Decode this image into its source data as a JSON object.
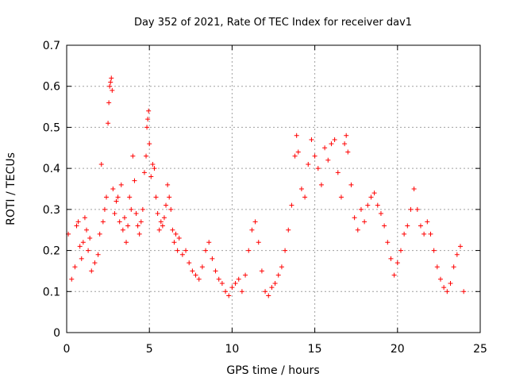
{
  "chart_data": {
    "type": "scatter",
    "title": "Day 352 of 2021, Rate Of TEC Index for receiver dav1",
    "xlabel": "GPS time / hours",
    "ylabel": "ROTI / TECUs",
    "xlim": [
      0,
      25
    ],
    "ylim": [
      0,
      0.7
    ],
    "xticks": [
      0,
      5,
      10,
      15,
      20,
      25
    ],
    "yticks": [
      0,
      0.1,
      0.2,
      0.3,
      0.4,
      0.5,
      0.6,
      0.7
    ],
    "grid": true,
    "marker": "+",
    "color": "#ff0000",
    "series": [
      {
        "points": [
          [
            0.1,
            0.24
          ],
          [
            0.3,
            0.13
          ],
          [
            0.5,
            0.16
          ],
          [
            0.6,
            0.26
          ],
          [
            0.7,
            0.27
          ],
          [
            0.8,
            0.21
          ],
          [
            0.9,
            0.18
          ],
          [
            1.0,
            0.22
          ],
          [
            1.1,
            0.28
          ],
          [
            1.2,
            0.25
          ],
          [
            1.3,
            0.2
          ],
          [
            1.4,
            0.23
          ],
          [
            1.5,
            0.15
          ],
          [
            1.7,
            0.17
          ],
          [
            1.9,
            0.19
          ],
          [
            2.0,
            0.24
          ],
          [
            2.1,
            0.41
          ],
          [
            2.2,
            0.27
          ],
          [
            2.3,
            0.3
          ],
          [
            2.4,
            0.33
          ],
          [
            2.5,
            0.51
          ],
          [
            2.55,
            0.56
          ],
          [
            2.6,
            0.6
          ],
          [
            2.65,
            0.61
          ],
          [
            2.7,
            0.62
          ],
          [
            2.75,
            0.59
          ],
          [
            2.8,
            0.35
          ],
          [
            2.9,
            0.29
          ],
          [
            3.0,
            0.32
          ],
          [
            3.1,
            0.33
          ],
          [
            3.2,
            0.27
          ],
          [
            3.3,
            0.36
          ],
          [
            3.4,
            0.25
          ],
          [
            3.5,
            0.28
          ],
          [
            3.6,
            0.22
          ],
          [
            3.7,
            0.26
          ],
          [
            3.8,
            0.33
          ],
          [
            3.9,
            0.3
          ],
          [
            4.0,
            0.43
          ],
          [
            4.1,
            0.37
          ],
          [
            4.2,
            0.29
          ],
          [
            4.3,
            0.26
          ],
          [
            4.4,
            0.24
          ],
          [
            4.5,
            0.27
          ],
          [
            4.6,
            0.3
          ],
          [
            4.7,
            0.39
          ],
          [
            4.8,
            0.43
          ],
          [
            4.85,
            0.5
          ],
          [
            4.9,
            0.52
          ],
          [
            4.95,
            0.54
          ],
          [
            5.0,
            0.46
          ],
          [
            5.1,
            0.38
          ],
          [
            5.2,
            0.41
          ],
          [
            5.3,
            0.4
          ],
          [
            5.4,
            0.33
          ],
          [
            5.5,
            0.29
          ],
          [
            5.6,
            0.25
          ],
          [
            5.7,
            0.27
          ],
          [
            5.8,
            0.26
          ],
          [
            5.9,
            0.28
          ],
          [
            6.0,
            0.31
          ],
          [
            6.1,
            0.36
          ],
          [
            6.2,
            0.33
          ],
          [
            6.3,
            0.3
          ],
          [
            6.4,
            0.25
          ],
          [
            6.5,
            0.22
          ],
          [
            6.6,
            0.24
          ],
          [
            6.7,
            0.2
          ],
          [
            6.8,
            0.23
          ],
          [
            7.0,
            0.19
          ],
          [
            7.2,
            0.2
          ],
          [
            7.4,
            0.17
          ],
          [
            7.6,
            0.15
          ],
          [
            7.8,
            0.14
          ],
          [
            8.0,
            0.13
          ],
          [
            8.2,
            0.16
          ],
          [
            8.4,
            0.2
          ],
          [
            8.6,
            0.22
          ],
          [
            8.8,
            0.18
          ],
          [
            9.0,
            0.15
          ],
          [
            9.2,
            0.13
          ],
          [
            9.4,
            0.12
          ],
          [
            9.6,
            0.1
          ],
          [
            9.8,
            0.09
          ],
          [
            10.0,
            0.11
          ],
          [
            10.2,
            0.12
          ],
          [
            10.4,
            0.13
          ],
          [
            10.6,
            0.1
          ],
          [
            10.8,
            0.14
          ],
          [
            11.0,
            0.2
          ],
          [
            11.2,
            0.25
          ],
          [
            11.4,
            0.27
          ],
          [
            11.6,
            0.22
          ],
          [
            11.8,
            0.15
          ],
          [
            12.0,
            0.1
          ],
          [
            12.2,
            0.09
          ],
          [
            12.4,
            0.11
          ],
          [
            12.6,
            0.12
          ],
          [
            12.8,
            0.14
          ],
          [
            13.0,
            0.16
          ],
          [
            13.2,
            0.2
          ],
          [
            13.4,
            0.25
          ],
          [
            13.6,
            0.31
          ],
          [
            13.8,
            0.43
          ],
          [
            13.9,
            0.48
          ],
          [
            14.0,
            0.44
          ],
          [
            14.2,
            0.35
          ],
          [
            14.4,
            0.33
          ],
          [
            14.6,
            0.41
          ],
          [
            14.8,
            0.47
          ],
          [
            15.0,
            0.43
          ],
          [
            15.2,
            0.4
          ],
          [
            15.4,
            0.36
          ],
          [
            15.6,
            0.45
          ],
          [
            15.8,
            0.42
          ],
          [
            16.0,
            0.46
          ],
          [
            16.2,
            0.47
          ],
          [
            16.4,
            0.39
          ],
          [
            16.6,
            0.33
          ],
          [
            16.8,
            0.46
          ],
          [
            16.9,
            0.48
          ],
          [
            17.0,
            0.44
          ],
          [
            17.2,
            0.36
          ],
          [
            17.4,
            0.28
          ],
          [
            17.6,
            0.25
          ],
          [
            17.8,
            0.3
          ],
          [
            18.0,
            0.27
          ],
          [
            18.2,
            0.31
          ],
          [
            18.4,
            0.33
          ],
          [
            18.6,
            0.34
          ],
          [
            18.8,
            0.31
          ],
          [
            19.0,
            0.29
          ],
          [
            19.2,
            0.26
          ],
          [
            19.4,
            0.22
          ],
          [
            19.6,
            0.18
          ],
          [
            19.8,
            0.14
          ],
          [
            20.0,
            0.17
          ],
          [
            20.2,
            0.2
          ],
          [
            20.4,
            0.24
          ],
          [
            20.6,
            0.26
          ],
          [
            20.8,
            0.3
          ],
          [
            21.0,
            0.35
          ],
          [
            21.2,
            0.3
          ],
          [
            21.4,
            0.26
          ],
          [
            21.6,
            0.24
          ],
          [
            21.8,
            0.27
          ],
          [
            22.0,
            0.24
          ],
          [
            22.2,
            0.2
          ],
          [
            22.4,
            0.16
          ],
          [
            22.6,
            0.13
          ],
          [
            22.8,
            0.11
          ],
          [
            23.0,
            0.1
          ],
          [
            23.2,
            0.12
          ],
          [
            23.4,
            0.16
          ],
          [
            23.6,
            0.19
          ],
          [
            23.8,
            0.21
          ],
          [
            24.0,
            0.1
          ]
        ]
      }
    ]
  }
}
